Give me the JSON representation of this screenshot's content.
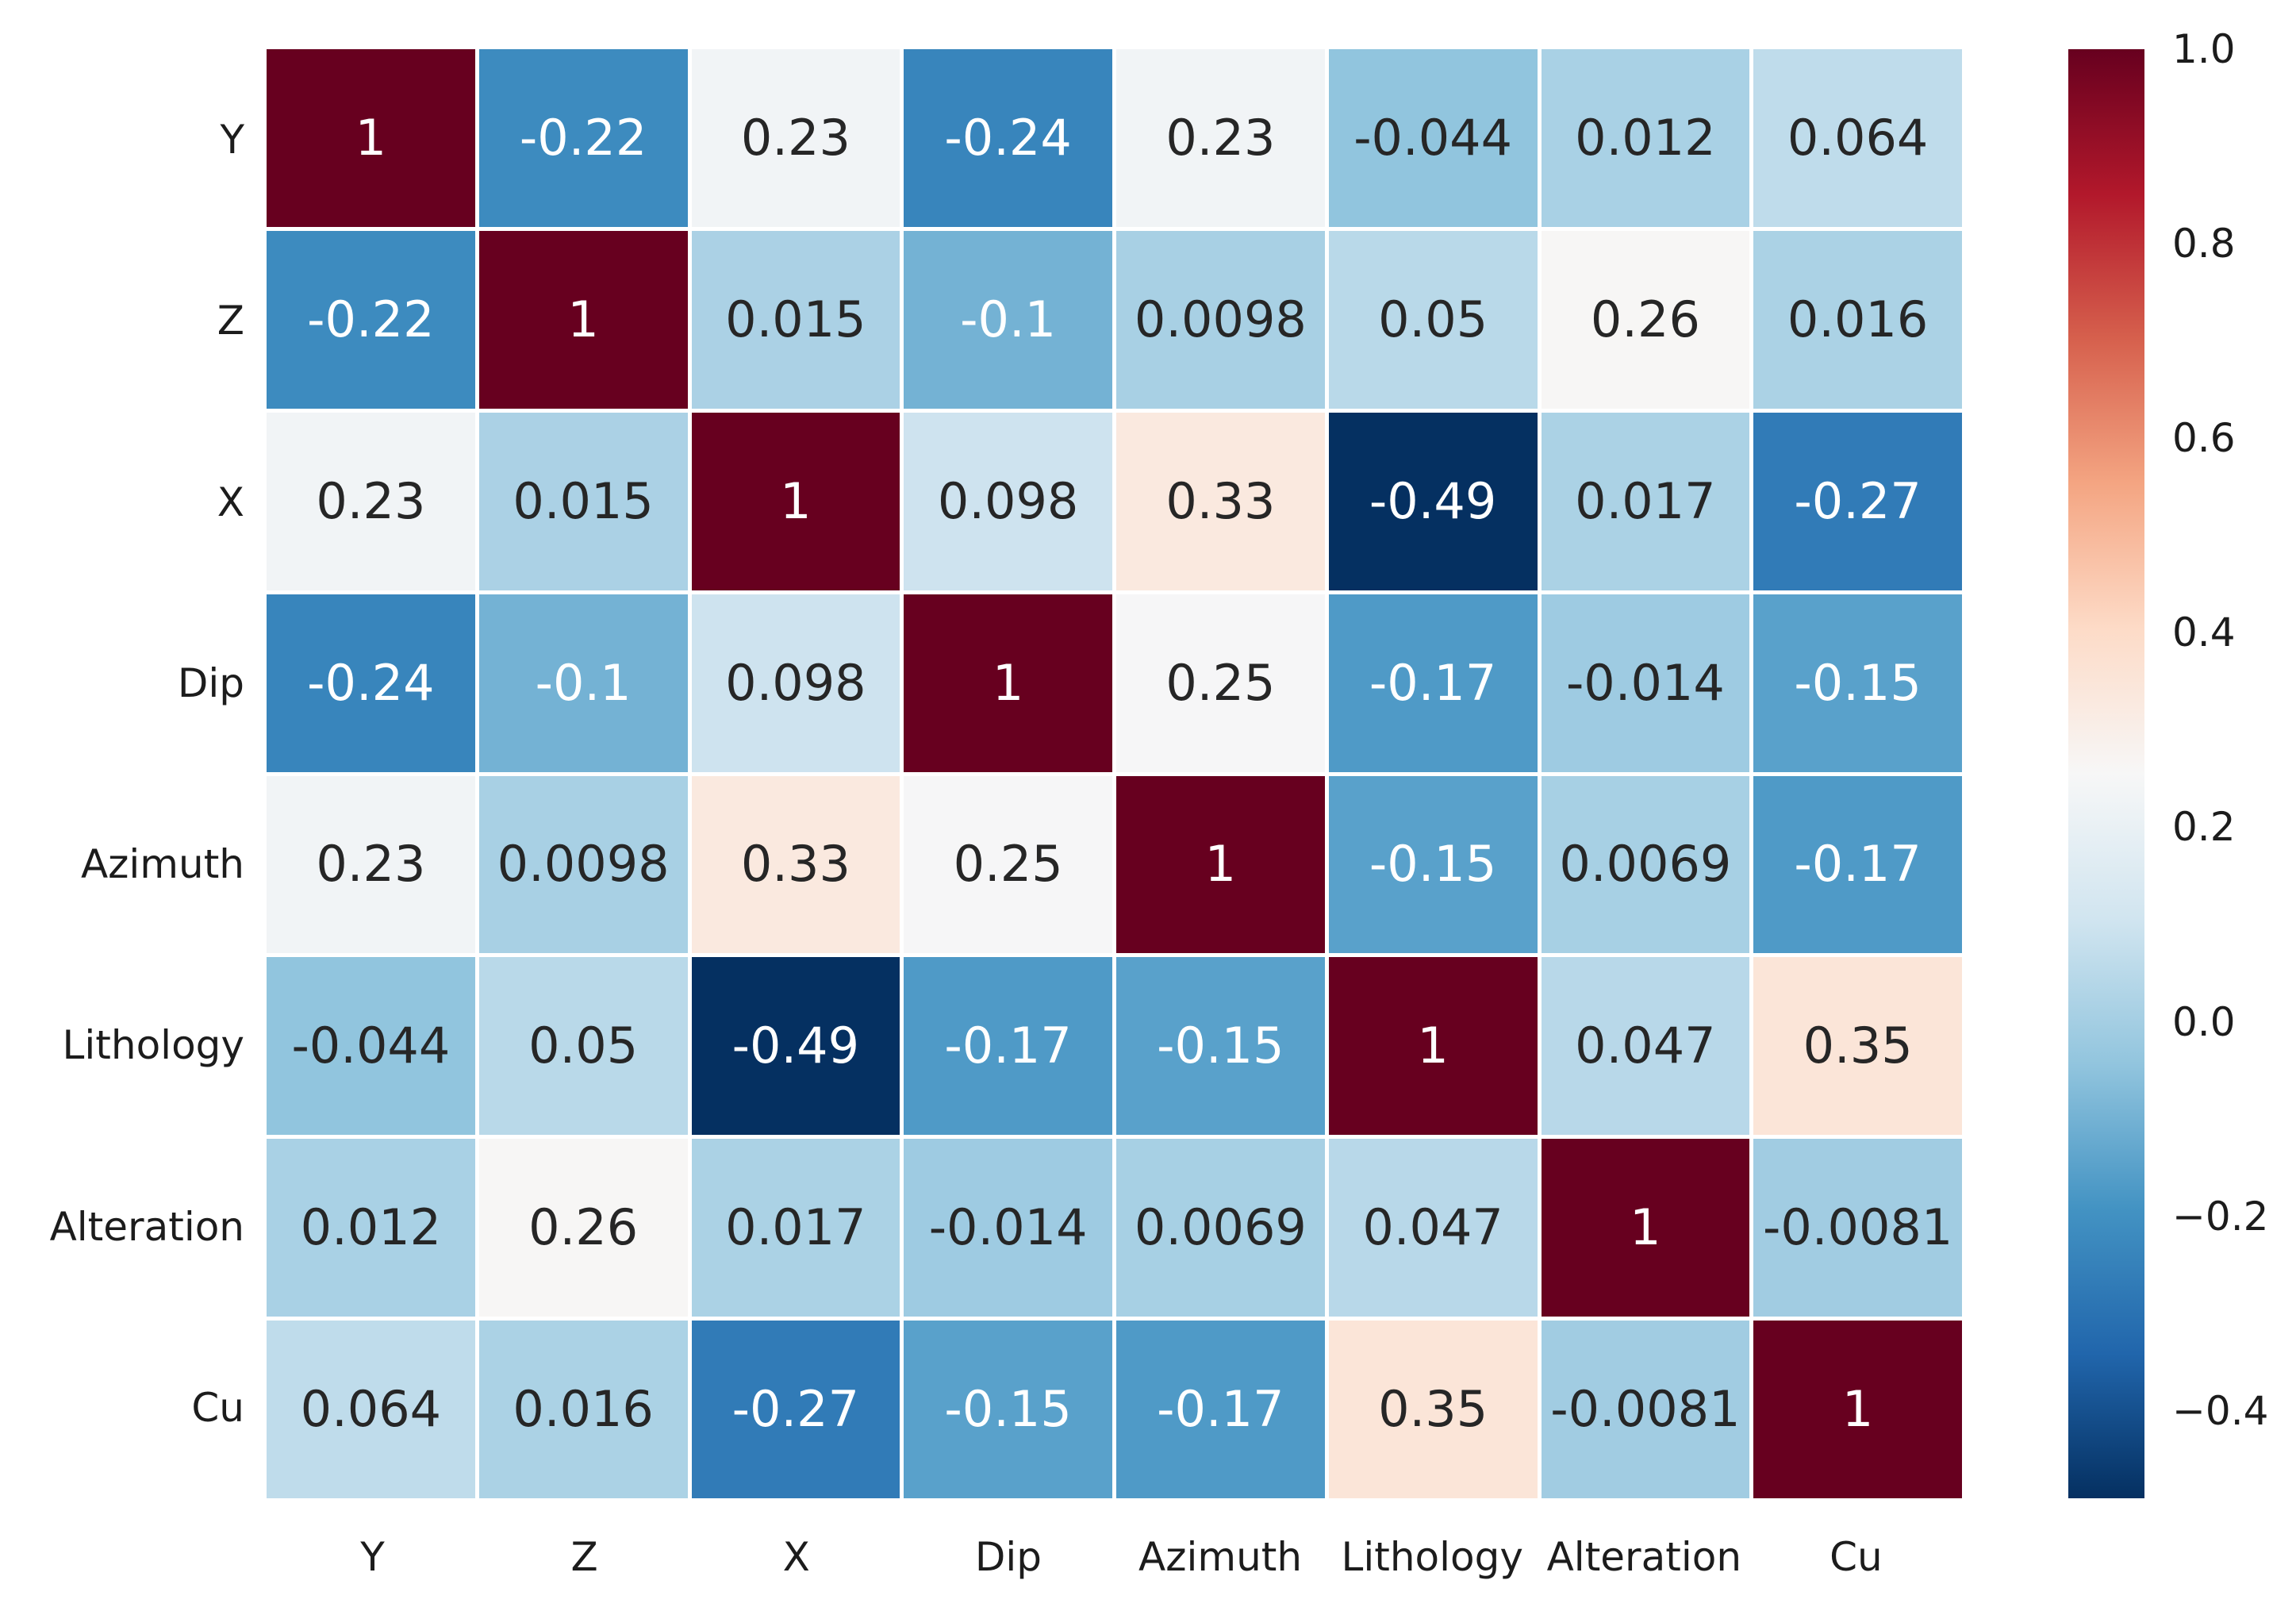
{
  "chart_data": {
    "type": "heatmap",
    "title": "",
    "xlabel": "",
    "ylabel": "",
    "categories": [
      "Y",
      "Z",
      "X",
      "Dip",
      "Azimuth",
      "Lithology",
      "Alteration",
      "Cu"
    ],
    "matrix": [
      [
        1,
        -0.22,
        0.23,
        -0.24,
        0.23,
        -0.044,
        0.012,
        0.064
      ],
      [
        -0.22,
        1,
        0.015,
        -0.1,
        0.0098,
        0.05,
        0.26,
        0.016
      ],
      [
        0.23,
        0.015,
        1,
        0.098,
        0.33,
        -0.49,
        0.017,
        -0.27
      ],
      [
        -0.24,
        -0.1,
        0.098,
        1,
        0.25,
        -0.17,
        -0.014,
        -0.15
      ],
      [
        0.23,
        0.0098,
        0.33,
        0.25,
        1,
        -0.15,
        0.0069,
        -0.17
      ],
      [
        -0.044,
        0.05,
        -0.49,
        -0.17,
        -0.15,
        1,
        0.047,
        0.35
      ],
      [
        0.012,
        0.26,
        0.017,
        -0.014,
        0.0069,
        0.047,
        1,
        -0.0081
      ],
      [
        0.064,
        0.016,
        -0.27,
        -0.15,
        -0.17,
        0.35,
        -0.0081,
        1
      ]
    ],
    "annotation_format": "2 significant digits",
    "vmin": -0.49,
    "vmax": 1.0,
    "colormap": {
      "name": "RdBu_r",
      "stops": [
        "#053061",
        "#2166ac",
        "#4393c3",
        "#92c5de",
        "#d1e5f0",
        "#f7f7f7",
        "#fddbc7",
        "#f4a582",
        "#d6604d",
        "#b2182b",
        "#67001f"
      ]
    },
    "grid_line_color": "#ffffff",
    "annotation_text_colors": {
      "dark": "#262626",
      "light": "#ffffff"
    },
    "colorbar": {
      "position": "right",
      "ticks": [
        {
          "value": 1.0,
          "label": "1.0"
        },
        {
          "value": 0.8,
          "label": "0.8"
        },
        {
          "value": 0.6,
          "label": "0.6"
        },
        {
          "value": 0.4,
          "label": "0.4"
        },
        {
          "value": 0.2,
          "label": "0.2"
        },
        {
          "value": 0.0,
          "label": "0.0"
        },
        {
          "value": -0.2,
          "label": "−0.2"
        },
        {
          "value": -0.4,
          "label": "−0.4"
        }
      ]
    }
  }
}
